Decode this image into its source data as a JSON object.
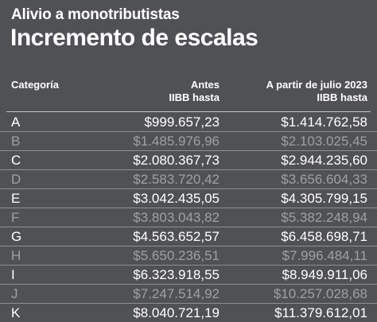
{
  "kicker": "Alivio a monotributistas",
  "title": "Incremento de escalas",
  "table": {
    "headers": {
      "category": "Categoría",
      "antes_line1": "Antes",
      "antes_line2": "IIBB hasta",
      "julio_line1": "A partir de julio 2023",
      "julio_line2": "IIBB hasta"
    },
    "rows": [
      {
        "category": "A",
        "antes": "$999.657,23",
        "julio": "$1.414.762,58"
      },
      {
        "category": "B",
        "antes": "$1.485.976,96",
        "julio": "$2.103.025,45"
      },
      {
        "category": "C",
        "antes": "$2.080.367,73",
        "julio": "$2.944.235,60"
      },
      {
        "category": "D",
        "antes": "$2.583.720,42",
        "julio": "$3.656.604,33"
      },
      {
        "category": "E",
        "antes": "$3.042.435,05",
        "julio": "$4.305.799,15"
      },
      {
        "category": "F",
        "antes": "$3.803.043,82",
        "julio": "$5.382.248,94"
      },
      {
        "category": "G",
        "antes": "$4.563.652,57",
        "julio": "$6.458.698,71"
      },
      {
        "category": "H",
        "antes": "$5.650.236,51",
        "julio": "$7.996.484,11"
      },
      {
        "category": "I",
        "antes": "$6.323.918,55",
        "julio": "$8.949.911,06"
      },
      {
        "category": "J",
        "antes": "$7.247.514,92",
        "julio": "$10.257.028,68"
      },
      {
        "category": "K",
        "antes": "$8.040.721,19",
        "julio": "$11.379.612,01"
      }
    ]
  },
  "colors": {
    "background": "#505155",
    "text_primary": "#ffffff",
    "text_dimmed": "#9fa0a3",
    "row_divider": "#8e8f92"
  }
}
